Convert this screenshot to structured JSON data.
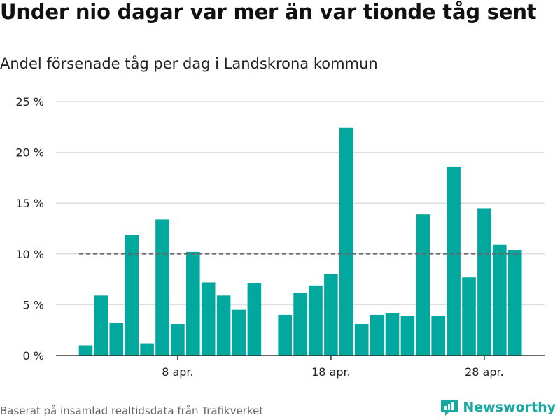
{
  "header": {
    "title": "Under nio dagar var mer än var tionde tåg sent",
    "subtitle": "Andel försenade tåg per dag i Landskrona kommun"
  },
  "footer": {
    "source": "Baserat på insamlad realtidsdata från Trafikverket",
    "brand": "Newsworthy"
  },
  "colors": {
    "bar": "#00a89d",
    "grid": "#dddddd",
    "reference_line": "#666666",
    "brand": "#17a8a0"
  },
  "chart_data": {
    "type": "bar",
    "title": "Under nio dagar var mer än var tionde tåg sent",
    "subtitle": "Andel försenade tåg per dag i Landskrona kommun",
    "xlabel": "",
    "ylabel": "",
    "unit": "%",
    "ylim": [
      0,
      25
    ],
    "yticks": [
      0,
      5,
      10,
      15,
      20,
      25
    ],
    "ytick_labels": [
      "0 %",
      "5 %",
      "10 %",
      "15 %",
      "20 %",
      "25 %"
    ],
    "grid": true,
    "days": [
      2,
      3,
      4,
      5,
      6,
      7,
      8,
      9,
      10,
      11,
      12,
      13,
      14,
      15,
      16,
      17,
      18,
      19,
      20,
      21,
      22,
      23,
      24,
      25,
      26,
      27,
      28,
      29,
      30
    ],
    "values": [
      1.0,
      5.9,
      3.2,
      11.9,
      1.2,
      13.4,
      3.1,
      10.2,
      7.2,
      5.9,
      4.5,
      7.1,
      null,
      4.0,
      6.2,
      6.9,
      8.0,
      22.4,
      3.1,
      4.0,
      4.2,
      3.9,
      13.9,
      3.9,
      18.6,
      7.7,
      14.5,
      10.9,
      10.4
    ],
    "xticks": [
      {
        "day": 8,
        "label": "8 apr."
      },
      {
        "day": 18,
        "label": "18 apr."
      },
      {
        "day": 28,
        "label": "28 apr."
      }
    ],
    "reference_line": {
      "value": 10,
      "style": "dashed"
    }
  }
}
